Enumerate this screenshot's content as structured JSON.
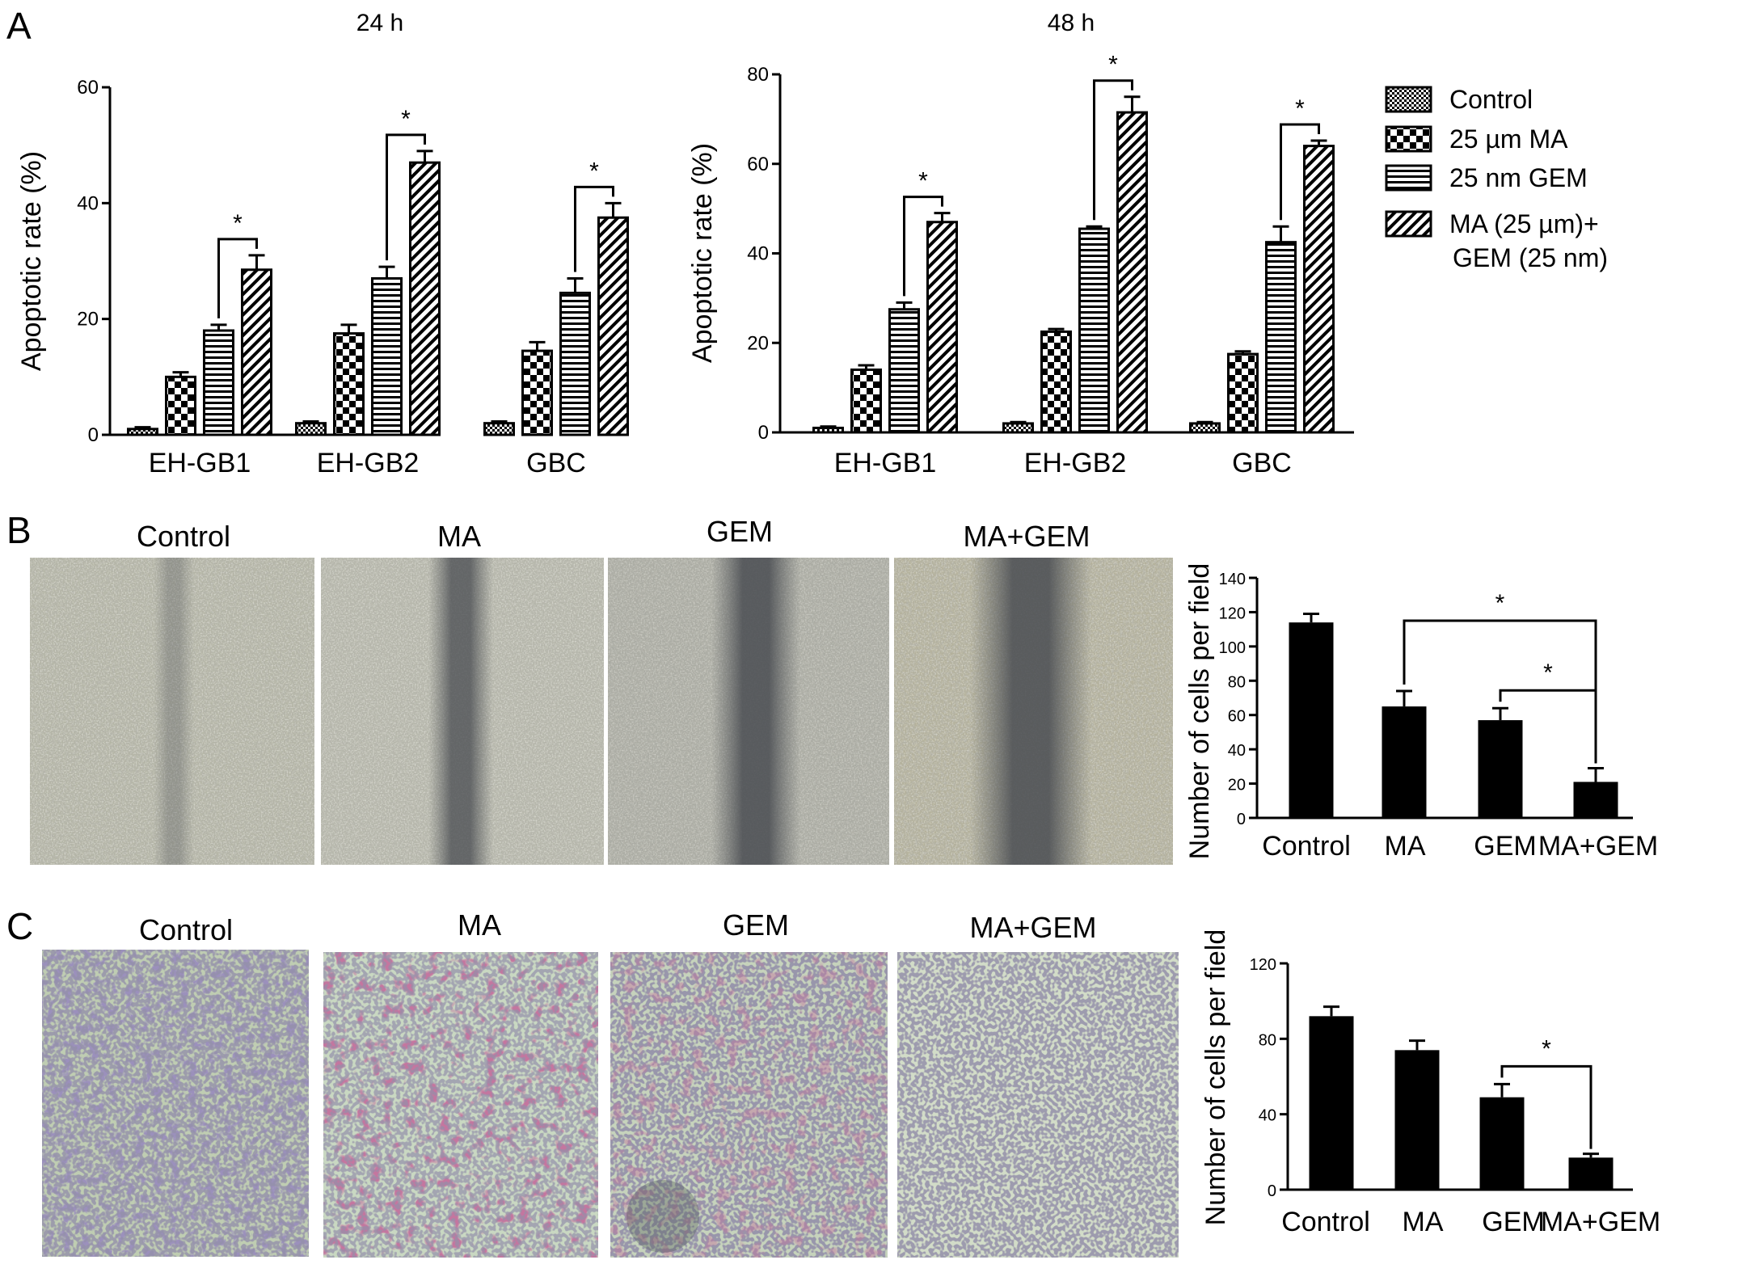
{
  "panels": {
    "A": "A",
    "B": "B",
    "C": "C"
  },
  "legend": {
    "items": [
      {
        "label": "Control",
        "pattern": "pat-checker"
      },
      {
        "label": "25 µm MA",
        "pattern": "pat-bigcheck"
      },
      {
        "label": "25 nm GEM",
        "pattern": "pat-hlines"
      },
      {
        "label": "MA (25 µm)+",
        "label2": "GEM (25 nm)",
        "pattern": "pat-diag"
      }
    ]
  },
  "photos": {
    "B": [
      "Control",
      "MA",
      "GEM",
      "MA+GEM"
    ],
    "C": [
      "Control",
      "MA",
      "GEM",
      "MA+GEM"
    ]
  },
  "colors": {
    "bar_fill": "#000000",
    "axis": "#000000",
    "wound_bg": "#bdbdb0",
    "transwell_bg": "#c9d6bf"
  },
  "chart_data": [
    {
      "id": "A-24h",
      "type": "bar",
      "title": "24 h",
      "ylabel": "Apoptotic rate (%)",
      "xlabel": "",
      "ylim": [
        0,
        60
      ],
      "yticks": [
        0,
        20,
        40,
        60
      ],
      "categories": [
        "EH-GB1",
        "EH-GB2",
        "GBC"
      ],
      "series": [
        {
          "name": "Control",
          "values": [
            1,
            2,
            2
          ],
          "errors": [
            0.3,
            0.3,
            0.3
          ]
        },
        {
          "name": "25 µm MA",
          "values": [
            10,
            17.5,
            14.5
          ],
          "errors": [
            0.8,
            1.5,
            1.5
          ]
        },
        {
          "name": "25 nm GEM",
          "values": [
            18,
            27,
            24.5
          ],
          "errors": [
            1.0,
            2.0,
            2.5
          ]
        },
        {
          "name": "MA (25 µm)+ GEM (25 nm)",
          "values": [
            28.5,
            47,
            37.5
          ],
          "errors": [
            2.5,
            2.0,
            2.5
          ]
        }
      ],
      "significance": [
        {
          "category": 0,
          "from": 2,
          "to": 3,
          "label": "*"
        },
        {
          "category": 1,
          "from": 2,
          "to": 3,
          "label": "*"
        },
        {
          "category": 2,
          "from": 2,
          "to": 3,
          "label": "*"
        }
      ]
    },
    {
      "id": "A-48h",
      "type": "bar",
      "title": "48 h",
      "ylabel": "Apoptotic rate (%)",
      "xlabel": "",
      "ylim": [
        0,
        80
      ],
      "yticks": [
        0,
        20,
        40,
        60,
        80
      ],
      "categories": [
        "EH-GB1",
        "EH-GB2",
        "GBC"
      ],
      "series": [
        {
          "name": "Control",
          "values": [
            1,
            2,
            2
          ],
          "errors": [
            0.3,
            0.3,
            0.3
          ]
        },
        {
          "name": "25 µm MA",
          "values": [
            14,
            22.5,
            17.5
          ],
          "errors": [
            1.0,
            0.6,
            0.6
          ]
        },
        {
          "name": "25 nm GEM",
          "values": [
            27.5,
            45.5,
            42.5
          ],
          "errors": [
            1.5,
            0.5,
            3.5
          ]
        },
        {
          "name": "MA (25 µm)+ GEM (25 nm)",
          "values": [
            47,
            71.5,
            64
          ],
          "errors": [
            2.0,
            3.5,
            1.2
          ]
        }
      ],
      "significance": [
        {
          "category": 0,
          "from": 2,
          "to": 3,
          "label": "*"
        },
        {
          "category": 1,
          "from": 2,
          "to": 3,
          "label": "*"
        },
        {
          "category": 2,
          "from": 2,
          "to": 3,
          "label": "*"
        }
      ]
    },
    {
      "id": "B-migration",
      "type": "bar",
      "title": "",
      "ylabel": "Number of cells per field",
      "xlabel": "",
      "ylim": [
        0,
        140
      ],
      "yticks": [
        0,
        20,
        40,
        60,
        80,
        100,
        120,
        140
      ],
      "categories": [
        "Control",
        "MA",
        "GEM",
        "MA+GEM"
      ],
      "values": [
        114,
        65,
        57,
        21
      ],
      "errors": [
        5,
        9,
        7,
        8
      ],
      "significance": [
        {
          "from": 1,
          "to": 3,
          "label": "*"
        },
        {
          "from": 2,
          "to": 3,
          "label": "*"
        }
      ]
    },
    {
      "id": "C-invasion",
      "type": "bar",
      "title": "",
      "ylabel": "Number of cells per field",
      "xlabel": "",
      "ylim": [
        0,
        120
      ],
      "yticks": [
        0,
        40,
        80,
        120
      ],
      "categories": [
        "Control",
        "MA",
        "GEM",
        "MA+GEM"
      ],
      "values": [
        92,
        74,
        49,
        17
      ],
      "errors": [
        5,
        5,
        7,
        2
      ],
      "significance": [
        {
          "from": 2,
          "to": 3,
          "label": "*"
        }
      ]
    }
  ]
}
